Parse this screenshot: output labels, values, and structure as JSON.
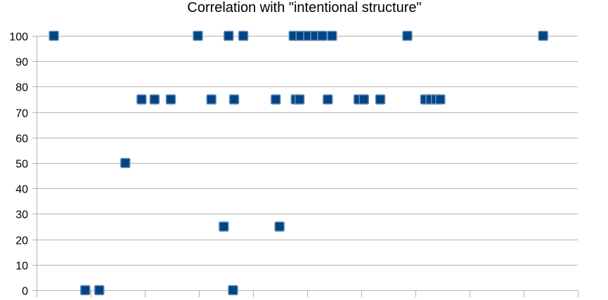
{
  "chart_data": {
    "type": "scatter",
    "title": "Correlation with \"intentional structure\"",
    "xlabel": "",
    "ylabel": "",
    "ylim": [
      0,
      100
    ],
    "yticks": [
      0,
      10,
      20,
      30,
      40,
      50,
      60,
      70,
      80,
      90,
      100
    ],
    "xlim": [
      0,
      100
    ],
    "grid": "horizontal",
    "legend": "none",
    "marker": "square",
    "colors": {
      "marker_fill": "#004586",
      "marker_stroke": "#6d8fb8",
      "grid": "#b3b3b3"
    },
    "series": [
      {
        "values": [
          {
            "x": 3.2,
            "y": 100
          },
          {
            "x": 9,
            "y": 0
          },
          {
            "x": 11.6,
            "y": 0
          },
          {
            "x": 16.4,
            "y": 50
          },
          {
            "x": 19.4,
            "y": 75
          },
          {
            "x": 21.8,
            "y": 75
          },
          {
            "x": 24.8,
            "y": 75
          },
          {
            "x": 29.8,
            "y": 100
          },
          {
            "x": 32.3,
            "y": 75
          },
          {
            "x": 34.6,
            "y": 25
          },
          {
            "x": 35.5,
            "y": 100
          },
          {
            "x": 36.3,
            "y": 0
          },
          {
            "x": 36.5,
            "y": 75
          },
          {
            "x": 38.2,
            "y": 100
          },
          {
            "x": 44.2,
            "y": 75
          },
          {
            "x": 44.9,
            "y": 25
          },
          {
            "x": 47.5,
            "y": 100
          },
          {
            "x": 47.9,
            "y": 75
          },
          {
            "x": 48.6,
            "y": 75
          },
          {
            "x": 48.8,
            "y": 100
          },
          {
            "x": 50.2,
            "y": 100
          },
          {
            "x": 51.5,
            "y": 100
          },
          {
            "x": 52.8,
            "y": 100
          },
          {
            "x": 53.8,
            "y": 75
          },
          {
            "x": 54.6,
            "y": 100
          },
          {
            "x": 59.5,
            "y": 75
          },
          {
            "x": 60.5,
            "y": 75
          },
          {
            "x": 63.5,
            "y": 75
          },
          {
            "x": 68.5,
            "y": 100
          },
          {
            "x": 71.8,
            "y": 75
          },
          {
            "x": 72.8,
            "y": 75
          },
          {
            "x": 73.8,
            "y": 75
          },
          {
            "x": 74.6,
            "y": 75
          },
          {
            "x": 93.6,
            "y": 100
          }
        ]
      }
    ]
  }
}
